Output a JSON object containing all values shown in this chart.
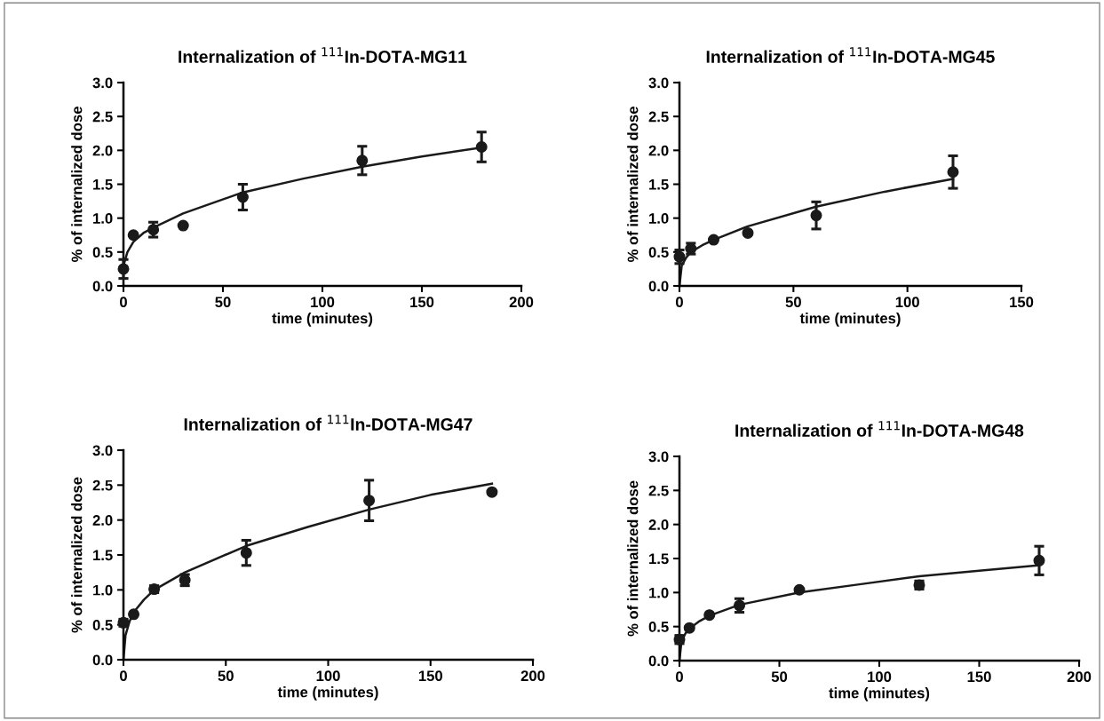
{
  "chart_data": [
    {
      "type": "scatter",
      "title": "Internalization of $^{111}$In-DOTA-MG11",
      "xlabel": "time (minutes)",
      "ylabel": "% of internalized dose",
      "xlim": [
        0,
        200
      ],
      "xticks": [
        0,
        50,
        100,
        150,
        200
      ],
      "ylim": [
        0,
        3
      ],
      "yticks": [
        {
          "value": 0,
          "label": "0.0"
        },
        {
          "value": 0.5,
          "label": "0.5"
        },
        {
          "value": 1,
          "label": "1.0"
        },
        {
          "value": 1.5,
          "label": "1.5"
        },
        {
          "value": 2,
          "label": "2.0"
        },
        {
          "value": 2.5,
          "label": "2.5"
        },
        {
          "value": 3,
          "label": "3.0"
        }
      ],
      "series": [
        {
          "marker": "circle",
          "color": "#1a1a1a",
          "x": [
            0,
            5,
            15,
            30,
            60,
            120,
            180
          ],
          "values": [
            0.25,
            0.75,
            0.83,
            0.89,
            1.31,
            1.85,
            2.05
          ],
          "errors": [
            0.14,
            null,
            0.11,
            null,
            0.19,
            0.21,
            0.22
          ]
        },
        {
          "type": "line",
          "color": "#1a1a1a",
          "x": [
            0,
            2,
            5,
            10,
            15,
            30,
            60,
            90,
            120,
            150,
            180
          ],
          "values": [
            0.3,
            0.5,
            0.65,
            0.78,
            0.86,
            1.07,
            1.38,
            1.58,
            1.76,
            1.91,
            2.04
          ]
        }
      ]
    },
    {
      "type": "scatter",
      "title": "Internalization of $^{111}$In-DOTA-MG45",
      "xlabel": "time (minutes)",
      "ylabel": "% of internalized dose",
      "xlim": [
        0,
        150
      ],
      "xticks": [
        0,
        50,
        100,
        150
      ],
      "ylim": [
        0,
        3
      ],
      "yticks": [
        {
          "value": 0,
          "label": "0.0"
        },
        {
          "value": 0.5,
          "label": "0.5"
        },
        {
          "value": 1,
          "label": "1.0"
        },
        {
          "value": 1.5,
          "label": "1.5"
        },
        {
          "value": 2,
          "label": "2.0"
        },
        {
          "value": 2.5,
          "label": "2.5"
        },
        {
          "value": 3,
          "label": "3.0"
        }
      ],
      "series": [
        {
          "marker": "circle",
          "color": "#1a1a1a",
          "x": [
            0,
            5,
            15,
            30,
            60,
            120
          ],
          "values": [
            0.43,
            0.55,
            0.68,
            0.78,
            1.04,
            1.68
          ],
          "errors": [
            0.1,
            0.08,
            null,
            null,
            0.2,
            0.24
          ]
        },
        {
          "type": "line",
          "color": "#1a1a1a",
          "x": [
            0,
            1,
            3,
            5,
            10,
            15,
            30,
            60,
            90,
            120
          ],
          "values": [
            0,
            0.3,
            0.42,
            0.5,
            0.6,
            0.68,
            0.88,
            1.17,
            1.39,
            1.58
          ]
        }
      ]
    },
    {
      "type": "scatter",
      "title": "Internalization of $^{111}$In-DOTA-MG47",
      "xlabel": "time (minutes)",
      "ylabel": "% of internalized dose",
      "xlim": [
        0,
        200
      ],
      "xticks": [
        0,
        50,
        100,
        150,
        200
      ],
      "ylim": [
        0,
        3
      ],
      "yticks": [
        {
          "value": 0,
          "label": "0.0"
        },
        {
          "value": 0.5,
          "label": "0.5"
        },
        {
          "value": 1,
          "label": "1.0"
        },
        {
          "value": 1.5,
          "label": "1.5"
        },
        {
          "value": 2,
          "label": "2.0"
        },
        {
          "value": 2.5,
          "label": "2.5"
        },
        {
          "value": 3,
          "label": "3.0"
        }
      ],
      "series": [
        {
          "marker": "circle",
          "color": "#1a1a1a",
          "x": [
            0,
            5,
            15,
            30,
            60,
            120,
            180
          ],
          "values": [
            0.53,
            0.65,
            1.01,
            1.14,
            1.53,
            2.28,
            2.4
          ],
          "errors": [
            0.05,
            null,
            0.05,
            0.08,
            0.18,
            0.29,
            null
          ]
        },
        {
          "type": "line",
          "color": "#1a1a1a",
          "x": [
            0,
            1,
            3,
            5,
            10,
            15,
            30,
            60,
            90,
            120,
            150,
            180
          ],
          "values": [
            0,
            0.35,
            0.55,
            0.68,
            0.86,
            1.0,
            1.25,
            1.63,
            1.9,
            2.15,
            2.36,
            2.52
          ]
        }
      ]
    },
    {
      "type": "scatter",
      "title": "Internalization of $^{111}$In-DOTA-MG48",
      "xlabel": "time (minutes)",
      "ylabel": "% of internalized dose",
      "xlim": [
        0,
        200
      ],
      "xticks": [
        0,
        50,
        100,
        150,
        200
      ],
      "ylim": [
        0,
        3
      ],
      "yticks": [
        {
          "value": 0,
          "label": "0.0"
        },
        {
          "value": 0.5,
          "label": "0.5"
        },
        {
          "value": 1,
          "label": "1.0"
        },
        {
          "value": 1.5,
          "label": "1.5"
        },
        {
          "value": 2,
          "label": "2.0"
        },
        {
          "value": 2.5,
          "label": "2.5"
        },
        {
          "value": 3,
          "label": "3.0"
        }
      ],
      "series": [
        {
          "marker": "circle",
          "color": "#1a1a1a",
          "x": [
            0,
            5,
            15,
            30,
            60,
            120,
            180
          ],
          "values": [
            0.31,
            0.48,
            0.67,
            0.81,
            1.04,
            1.11,
            1.47
          ],
          "errors": [
            0.06,
            null,
            null,
            0.1,
            null,
            0.06,
            0.21
          ]
        },
        {
          "type": "line",
          "color": "#1a1a1a",
          "x": [
            0,
            1,
            3,
            5,
            10,
            15,
            30,
            60,
            90,
            120,
            150,
            180
          ],
          "values": [
            0,
            0.28,
            0.4,
            0.47,
            0.58,
            0.66,
            0.82,
            1.0,
            1.12,
            1.24,
            1.32,
            1.4
          ]
        }
      ]
    }
  ]
}
